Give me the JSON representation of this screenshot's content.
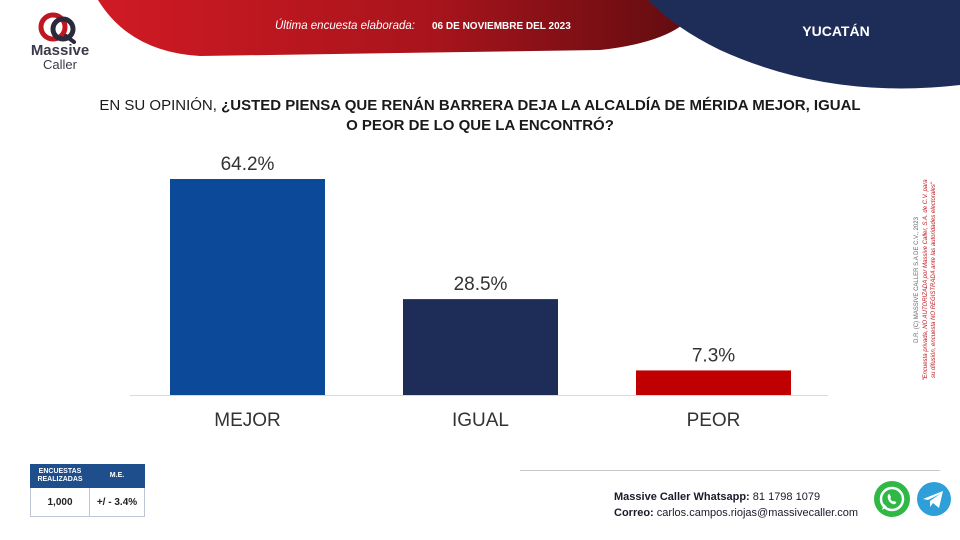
{
  "logo": {
    "line1": "Massive",
    "line2": "Caller"
  },
  "header": {
    "survey_label": "Última encuesta elaborada:",
    "survey_date": "06 DE NOVIEMBRE DEL 2023",
    "region": "YUCATÁN"
  },
  "question": {
    "prefix": "EN SU OPINIÓN,",
    "line1_bold": "¿USTED PIENSA QUE RENÁN BARRERA DEJA LA ALCALDÍA DE MÉRIDA MEJOR, IGUAL",
    "line2_bold": "O PEOR DE LO QUE LA ENCONTRÓ?"
  },
  "chart_data": {
    "type": "bar",
    "categories": [
      "MEJOR",
      "IGUAL",
      "PEOR"
    ],
    "values": [
      64.2,
      28.5,
      7.3
    ],
    "value_labels": [
      "64.2%",
      "28.5%",
      "7.3%"
    ],
    "bar_colors": [
      "#0c4a99",
      "#1e2d57",
      "#c00000"
    ],
    "title": "",
    "xlabel": "",
    "ylabel": "",
    "ylim": [
      0,
      64.2
    ],
    "grid": false,
    "legend": "none"
  },
  "legal": {
    "line1": "D.R. (C) MASSIVE CALLER S.A DE C.V., 2023",
    "line2": "\"Encuesta privada, NO AUTORIZADA por Massive Caller, S.A. de C.V. para",
    "line3": "su difusión, encuesta NO REGISTRADA ante las autoridades electorales\""
  },
  "sample_table": {
    "header_surveys": "ENCUESTAS REALIZADAS",
    "header_me": "M.E.",
    "surveys": "1,000",
    "me": "+/ - 3.4%"
  },
  "contact": {
    "whatsapp_label": "Massive Caller Whatsapp:",
    "whatsapp_number": "81 1798 1079",
    "email_label": "Correo:",
    "email": "carlos.campos.riojas@massivecaller.com"
  },
  "icons": {
    "whatsapp": "whatsapp-icon",
    "telegram": "telegram-icon",
    "logo": "massive-caller-logo-icon"
  },
  "colors": {
    "red_band": "#b3121e",
    "navy_band": "#1e2d57",
    "accent_blue": "#1f4e8c"
  }
}
